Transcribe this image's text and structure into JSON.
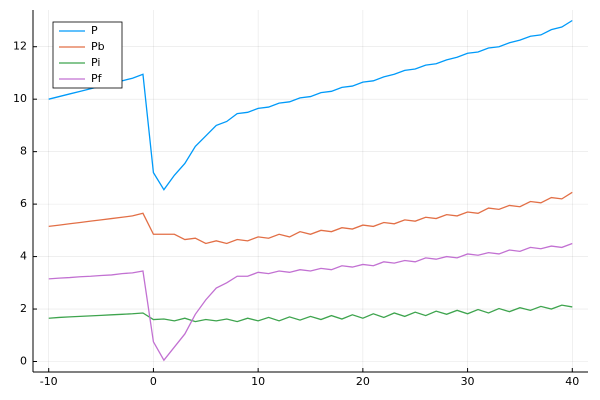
{
  "chart_data": {
    "type": "line",
    "x": [
      -10,
      -9,
      -8,
      -7,
      -6,
      -5,
      -4,
      -3,
      -2,
      -1,
      0,
      1,
      2,
      3,
      4,
      5,
      6,
      7,
      8,
      9,
      10,
      11,
      12,
      13,
      14,
      15,
      16,
      17,
      18,
      19,
      20,
      21,
      22,
      23,
      24,
      25,
      26,
      27,
      28,
      29,
      30,
      31,
      32,
      33,
      34,
      35,
      36,
      37,
      38,
      39,
      40
    ],
    "series": [
      {
        "name": "P",
        "color": "#009af9",
        "values": [
          10.0,
          10.1,
          10.2,
          10.3,
          10.4,
          10.5,
          10.6,
          10.7,
          10.8,
          10.95,
          7.2,
          6.55,
          7.1,
          7.55,
          8.2,
          8.6,
          9.0,
          9.15,
          9.45,
          9.5,
          9.65,
          9.7,
          9.85,
          9.9,
          10.05,
          10.1,
          10.25,
          10.3,
          10.45,
          10.5,
          10.65,
          10.7,
          10.85,
          10.95,
          11.1,
          11.15,
          11.3,
          11.35,
          11.5,
          11.6,
          11.75,
          11.8,
          11.95,
          12.0,
          12.15,
          12.25,
          12.4,
          12.45,
          12.65,
          12.75,
          13.0
        ]
      },
      {
        "name": "Pb",
        "color": "#e26f46",
        "values": [
          5.15,
          5.2,
          5.25,
          5.3,
          5.35,
          5.4,
          5.45,
          5.5,
          5.55,
          5.65,
          4.85,
          4.85,
          4.85,
          4.65,
          4.7,
          4.5,
          4.6,
          4.5,
          4.65,
          4.6,
          4.75,
          4.7,
          4.85,
          4.75,
          4.95,
          4.85,
          5.0,
          4.95,
          5.1,
          5.05,
          5.2,
          5.15,
          5.3,
          5.25,
          5.4,
          5.35,
          5.5,
          5.45,
          5.6,
          5.55,
          5.7,
          5.65,
          5.85,
          5.8,
          5.95,
          5.9,
          6.1,
          6.05,
          6.25,
          6.2,
          6.45
        ]
      },
      {
        "name": "Pi",
        "color": "#3ea44e",
        "values": [
          1.65,
          1.68,
          1.7,
          1.72,
          1.74,
          1.76,
          1.78,
          1.8,
          1.82,
          1.85,
          1.6,
          1.62,
          1.55,
          1.65,
          1.52,
          1.6,
          1.55,
          1.62,
          1.52,
          1.65,
          1.55,
          1.68,
          1.55,
          1.7,
          1.58,
          1.72,
          1.6,
          1.75,
          1.62,
          1.78,
          1.65,
          1.82,
          1.68,
          1.85,
          1.72,
          1.88,
          1.75,
          1.92,
          1.8,
          1.95,
          1.82,
          1.98,
          1.85,
          2.02,
          1.9,
          2.05,
          1.95,
          2.1,
          2.0,
          2.15,
          2.08
        ]
      },
      {
        "name": "Pf",
        "color": "#c271d2",
        "values": [
          3.15,
          3.18,
          3.2,
          3.23,
          3.25,
          3.28,
          3.3,
          3.35,
          3.38,
          3.45,
          0.75,
          0.05,
          0.55,
          1.05,
          1.8,
          2.35,
          2.8,
          3.0,
          3.25,
          3.25,
          3.4,
          3.35,
          3.45,
          3.4,
          3.5,
          3.45,
          3.55,
          3.5,
          3.65,
          3.6,
          3.7,
          3.65,
          3.8,
          3.75,
          3.85,
          3.8,
          3.95,
          3.9,
          4.0,
          3.95,
          4.1,
          4.05,
          4.15,
          4.1,
          4.25,
          4.2,
          4.35,
          4.3,
          4.4,
          4.35,
          4.5
        ]
      }
    ],
    "xlim": [
      -11.5,
      41.5
    ],
    "ylim": [
      -0.4,
      13.4
    ],
    "xticks": [
      -10,
      0,
      10,
      20,
      30,
      40
    ],
    "yticks": [
      0,
      2,
      4,
      6,
      8,
      10,
      12
    ],
    "grid": true,
    "legend": "top-left"
  }
}
